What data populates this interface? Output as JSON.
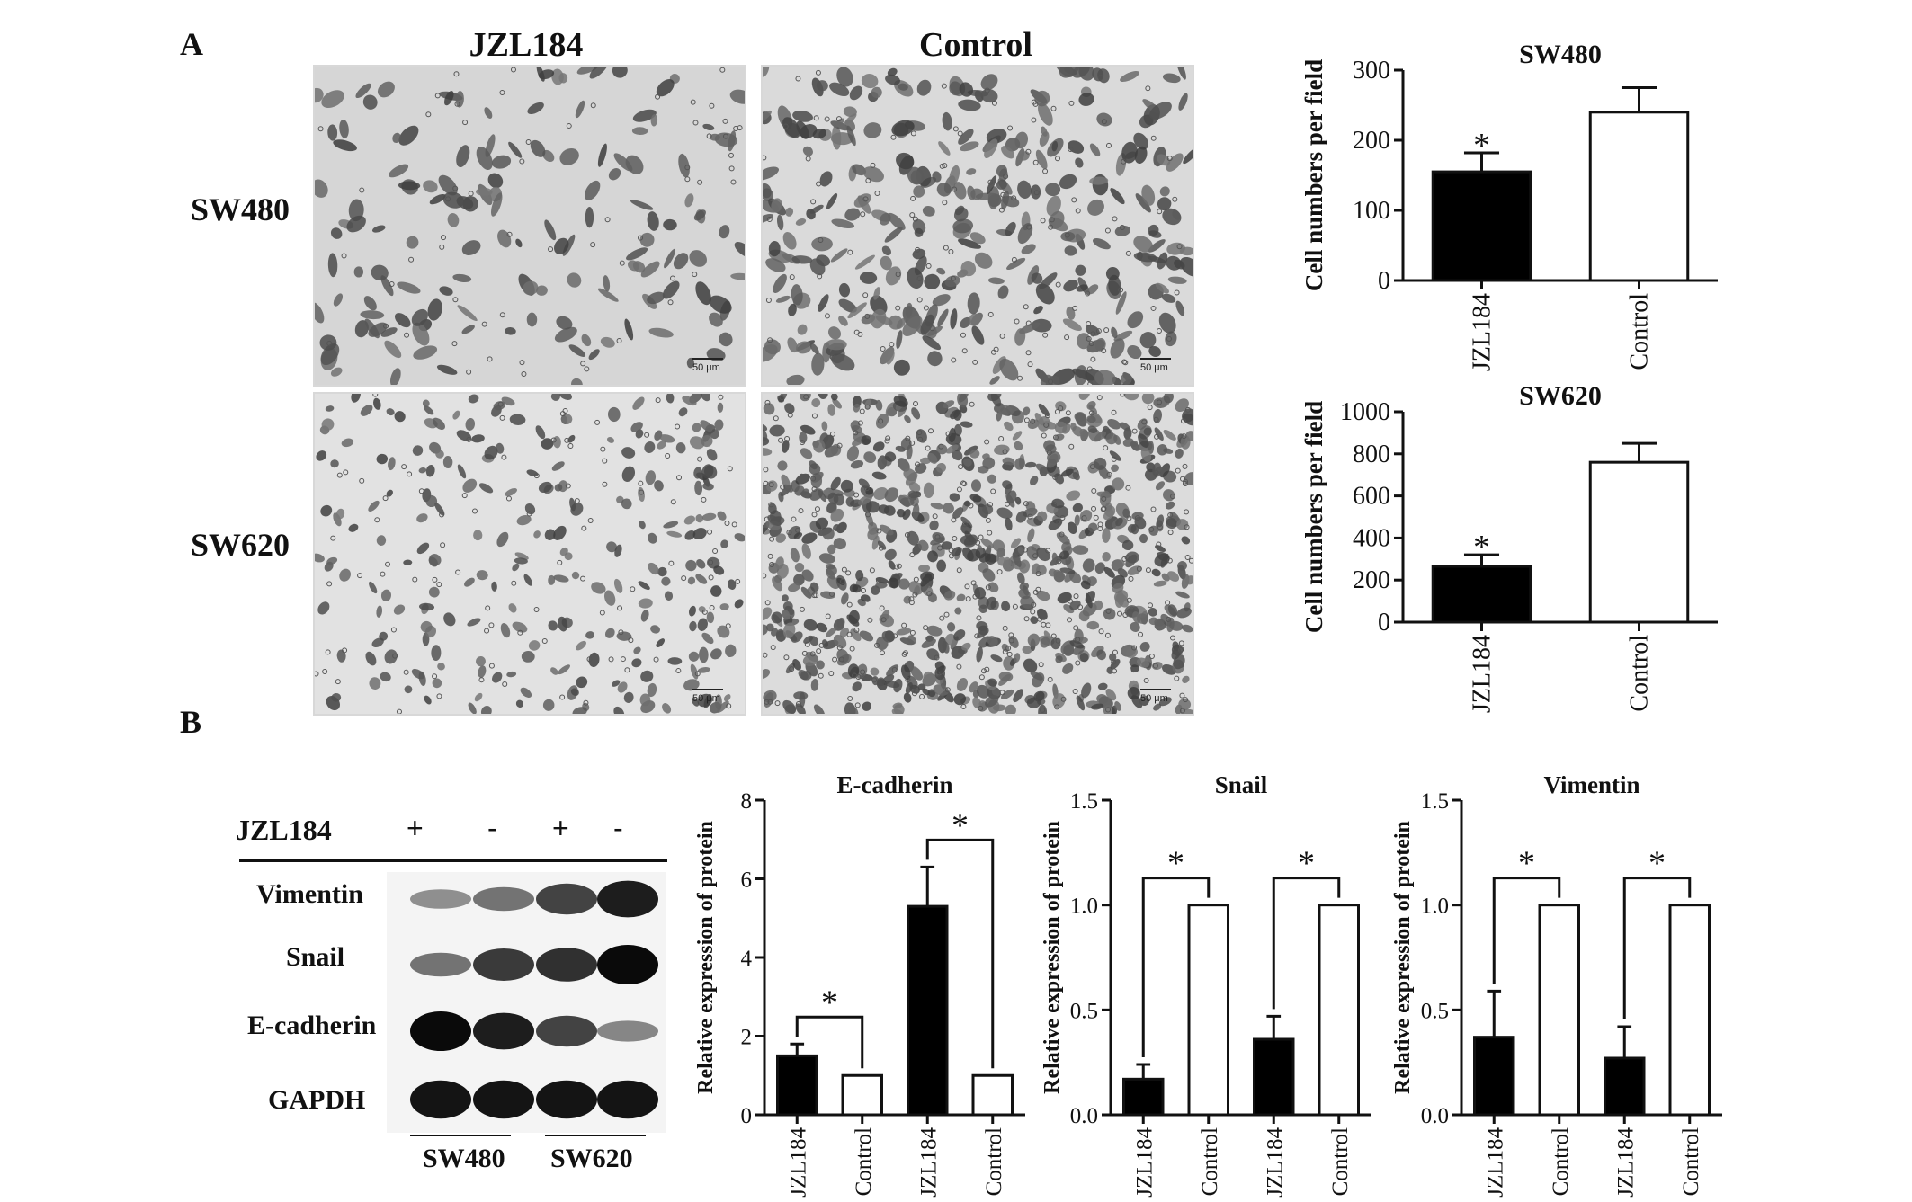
{
  "figure": {
    "panel_a_label": "A",
    "panel_b_label": "B",
    "micrographs": {
      "col_titles": [
        "JZL184",
        "Control"
      ],
      "row_labels": [
        "SW480",
        "SW620"
      ],
      "scale_bar": "50 μm"
    },
    "western_blot": {
      "treatment_label": "JZL184",
      "treatment_symbols": [
        "+",
        "-",
        "+",
        "-"
      ],
      "proteins": [
        "Vimentin",
        "Snail",
        "E-cadherin",
        "GAPDH"
      ],
      "cell_groups": [
        "SW480",
        "SW620"
      ],
      "band_intensity": [
        [
          0.3,
          0.45,
          0.7,
          0.9
        ],
        [
          0.45,
          0.75,
          0.8,
          1.0
        ],
        [
          1.0,
          0.9,
          0.7,
          0.35
        ],
        [
          0.95,
          0.95,
          0.95,
          0.95
        ]
      ]
    }
  },
  "chart_data": [
    {
      "type": "bar",
      "title": "SW480",
      "ylabel": "Cell numbers per field",
      "categories": [
        "JZL184",
        "Control"
      ],
      "values": [
        155,
        240
      ],
      "errors": [
        27,
        35
      ],
      "ylim": [
        0,
        300
      ],
      "yticks": [
        0,
        100,
        200,
        300
      ],
      "significance": [
        "*",
        ""
      ],
      "fills": [
        "#000000",
        "#ffffff"
      ]
    },
    {
      "type": "bar",
      "title": "SW620",
      "ylabel": "Cell numbers per field",
      "categories": [
        "JZL184",
        "Control"
      ],
      "values": [
        265,
        760
      ],
      "errors": [
        55,
        90
      ],
      "ylim": [
        0,
        1000
      ],
      "yticks": [
        0,
        200,
        400,
        600,
        800,
        1000
      ],
      "significance": [
        "*",
        ""
      ],
      "fills": [
        "#000000",
        "#ffffff"
      ]
    },
    {
      "type": "bar",
      "title": "E-cadherin",
      "ylabel": "Relative expression of protein",
      "categories": [
        "JZL184",
        "Control",
        "JZL184",
        "Control"
      ],
      "values": [
        1.5,
        1.0,
        5.3,
        1.0
      ],
      "errors": [
        0.3,
        0,
        1.0,
        0
      ],
      "ylim": [
        0,
        8
      ],
      "yticks": [
        0,
        2,
        4,
        6,
        8
      ],
      "significance_brackets": [
        {
          "from": 0,
          "to": 1,
          "label": "*"
        },
        {
          "from": 2,
          "to": 3,
          "label": "*"
        }
      ],
      "fills": [
        "#000000",
        "#ffffff",
        "#000000",
        "#ffffff"
      ]
    },
    {
      "type": "bar",
      "title": "Snail",
      "ylabel": "Relative expression of protein",
      "categories": [
        "JZL184",
        "Control",
        "JZL184",
        "Control"
      ],
      "values": [
        0.17,
        1.0,
        0.36,
        1.0
      ],
      "errors": [
        0.07,
        0,
        0.11,
        0
      ],
      "ylim": [
        0,
        1.5
      ],
      "yticks": [
        0,
        0.5,
        1.0,
        1.5
      ],
      "significance_brackets": [
        {
          "from": 0,
          "to": 1,
          "label": "*"
        },
        {
          "from": 2,
          "to": 3,
          "label": "*"
        }
      ],
      "fills": [
        "#000000",
        "#ffffff",
        "#000000",
        "#ffffff"
      ]
    },
    {
      "type": "bar",
      "title": "Vimentin",
      "ylabel": "Relative expression of protein",
      "categories": [
        "JZL184",
        "Control",
        "JZL184",
        "Control"
      ],
      "values": [
        0.37,
        1.0,
        0.27,
        1.0
      ],
      "errors": [
        0.22,
        0,
        0.15,
        0
      ],
      "ylim": [
        0,
        1.5
      ],
      "yticks": [
        0,
        0.5,
        1.0,
        1.5
      ],
      "significance_brackets": [
        {
          "from": 0,
          "to": 1,
          "label": "*"
        },
        {
          "from": 2,
          "to": 3,
          "label": "*"
        }
      ],
      "fills": [
        "#000000",
        "#ffffff",
        "#000000",
        "#ffffff"
      ]
    }
  ]
}
